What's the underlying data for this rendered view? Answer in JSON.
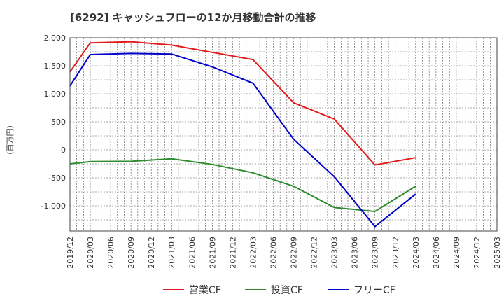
{
  "chart_data": {
    "type": "line",
    "title": "[6292]  キャッシュフローの12か月移動合計の推移",
    "ylabel": "(百万円)",
    "xlabel": "",
    "ylim": [
      -1450,
      2000
    ],
    "yticks": [
      2000,
      1500,
      1000,
      500,
      0,
      -500,
      -1000
    ],
    "ytick_labels": [
      "2,000",
      "1,500",
      "1,000",
      "500",
      "0",
      "-500",
      "-1,000"
    ],
    "categories": [
      "2019/12",
      "2020/03",
      "2020/06",
      "2020/09",
      "2020/12",
      "2021/03",
      "2021/06",
      "2021/09",
      "2021/12",
      "2022/03",
      "2022/06",
      "2022/09",
      "2022/12",
      "2023/03",
      "2023/06",
      "2023/09",
      "2023/12",
      "2024/03",
      "2024/06",
      "2024/09",
      "2024/12",
      "2025/03"
    ],
    "grid": true,
    "legend_position": "bottom",
    "series": [
      {
        "name": "営業CF",
        "color": "#e31a1c",
        "values": [
          1390,
          1910,
          null,
          1930,
          null,
          1870,
          null,
          1740,
          null,
          1610,
          null,
          840,
          null,
          550,
          null,
          -270,
          null,
          -140,
          null,
          null,
          null,
          null
        ]
      },
      {
        "name": "投資CF",
        "color": "#2e8b2e",
        "values": [
          -250,
          -210,
          null,
          -205,
          null,
          -160,
          null,
          -260,
          null,
          -410,
          null,
          -650,
          null,
          -1030,
          null,
          -1100,
          null,
          -650,
          null,
          null,
          null,
          null
        ]
      },
      {
        "name": "フリーCF",
        "color": "#0000cc",
        "values": [
          1140,
          1700,
          null,
          1720,
          null,
          1710,
          null,
          1480,
          null,
          1190,
          null,
          190,
          null,
          -480,
          null,
          -1370,
          null,
          -790,
          null,
          null,
          null,
          null
        ]
      }
    ]
  }
}
